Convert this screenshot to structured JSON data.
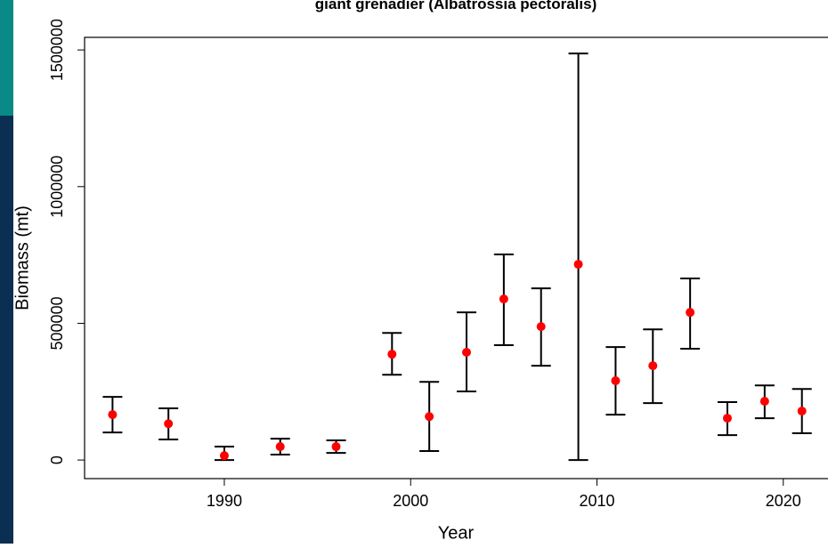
{
  "chart_data": {
    "type": "errorbar",
    "title": "giant grenadier (Albatrossia pectoralis)",
    "x_label": "Year",
    "y_label": "Biomass (mt)",
    "x": [
      1984,
      1987,
      1990,
      1993,
      1996,
      1999,
      2001,
      2003,
      2005,
      2007,
      2009,
      2011,
      2013,
      2015,
      2017,
      2019,
      2021
    ],
    "values": [
      166000,
      133000,
      16000,
      49000,
      49000,
      387000,
      159000,
      394000,
      589000,
      488000,
      716000,
      290000,
      345000,
      540000,
      153000,
      215000,
      179000
    ],
    "lower": [
      101000,
      75000,
      0,
      20000,
      26000,
      312000,
      33000,
      251000,
      420000,
      345000,
      0,
      166000,
      208000,
      407000,
      91000,
      153000,
      98000
    ],
    "upper": [
      231000,
      189000,
      49000,
      78000,
      72000,
      465000,
      286000,
      540000,
      752000,
      628000,
      1487000,
      413000,
      478000,
      664000,
      212000,
      273000,
      260000
    ],
    "color": "#ff0000",
    "xlim": [
      1982.5,
      2022.4
    ],
    "ylim": [
      -68000,
      1546000
    ],
    "xticks": [
      1990,
      2000,
      2010,
      2020
    ],
    "yticks": [
      0,
      500000,
      1000000,
      1500000
    ]
  }
}
